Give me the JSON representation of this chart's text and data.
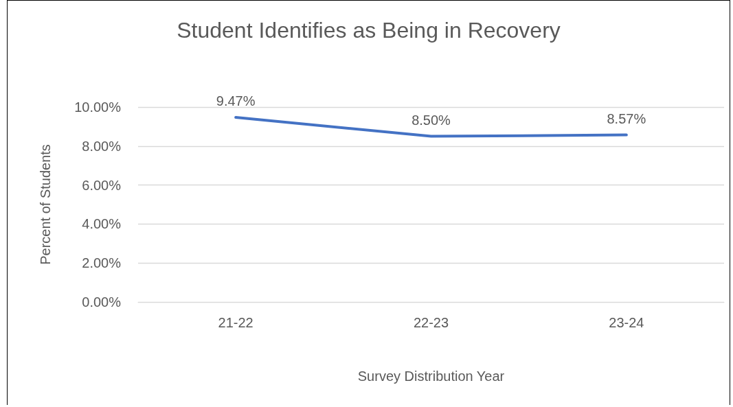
{
  "chart_data": {
    "type": "line",
    "title": "Student Identifies as Being in Recovery",
    "xlabel": "Survey Distribution Year",
    "ylabel": "Percent of Students",
    "categories": [
      "21-22",
      "22-23",
      "23-24"
    ],
    "series": [
      {
        "color": "#4472c4",
        "values": [
          9.47,
          8.5,
          8.57
        ],
        "value_labels": [
          "9.47%",
          "8.50%",
          "8.57%"
        ]
      }
    ],
    "ylim": [
      0,
      10
    ],
    "yticks": [
      {
        "value": 0,
        "label": "0.00%"
      },
      {
        "value": 2,
        "label": "2.00%"
      },
      {
        "value": 4,
        "label": "4.00%"
      },
      {
        "value": 6,
        "label": "6.00%"
      },
      {
        "value": 8,
        "label": "8.00%"
      },
      {
        "value": 10,
        "label": "10.00%"
      }
    ],
    "grid": "y",
    "marker": "none",
    "line_style": "solid"
  }
}
